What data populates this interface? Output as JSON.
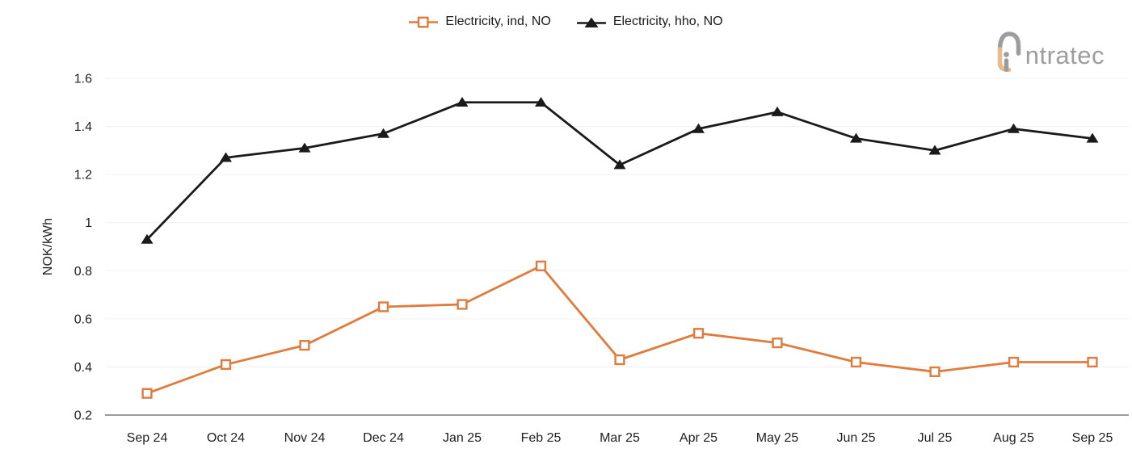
{
  "logo": {
    "brand": "intratec",
    "wordmark_rest": "ntratec"
  },
  "chart_data": {
    "type": "line",
    "title": "",
    "xlabel": "",
    "ylabel": "NOK/kWh",
    "ylim": [
      0.2,
      1.6
    ],
    "yticks": [
      0.2,
      0.4,
      0.6,
      0.8,
      1.0,
      1.2,
      1.4,
      1.6
    ],
    "grid": "horizontal",
    "legend_position": "top-center",
    "axis_color": "#7a7a7a",
    "grid_color": "#f0f0f0",
    "text_color": "#212121",
    "categories": [
      "Sep 24",
      "Oct 24",
      "Nov 24",
      "Dec 24",
      "Jan 25",
      "Feb 25",
      "Mar 25",
      "Apr 25",
      "May 25",
      "Jun 25",
      "Jul 25",
      "Aug 25",
      "Sep 25"
    ],
    "series": [
      {
        "name": "Electricity, ind, NO",
        "color": "#DE7B3D",
        "marker": "square",
        "values": [
          0.29,
          0.41,
          0.49,
          0.65,
          0.66,
          0.82,
          0.43,
          0.54,
          0.5,
          0.42,
          0.38,
          0.42,
          0.42
        ]
      },
      {
        "name": "Electricity, hho, NO",
        "color": "#1A1A1A",
        "marker": "triangle",
        "values": [
          0.93,
          1.27,
          1.31,
          1.37,
          1.5,
          1.5,
          1.24,
          1.39,
          1.46,
          1.35,
          1.3,
          1.39,
          1.35
        ]
      }
    ]
  }
}
